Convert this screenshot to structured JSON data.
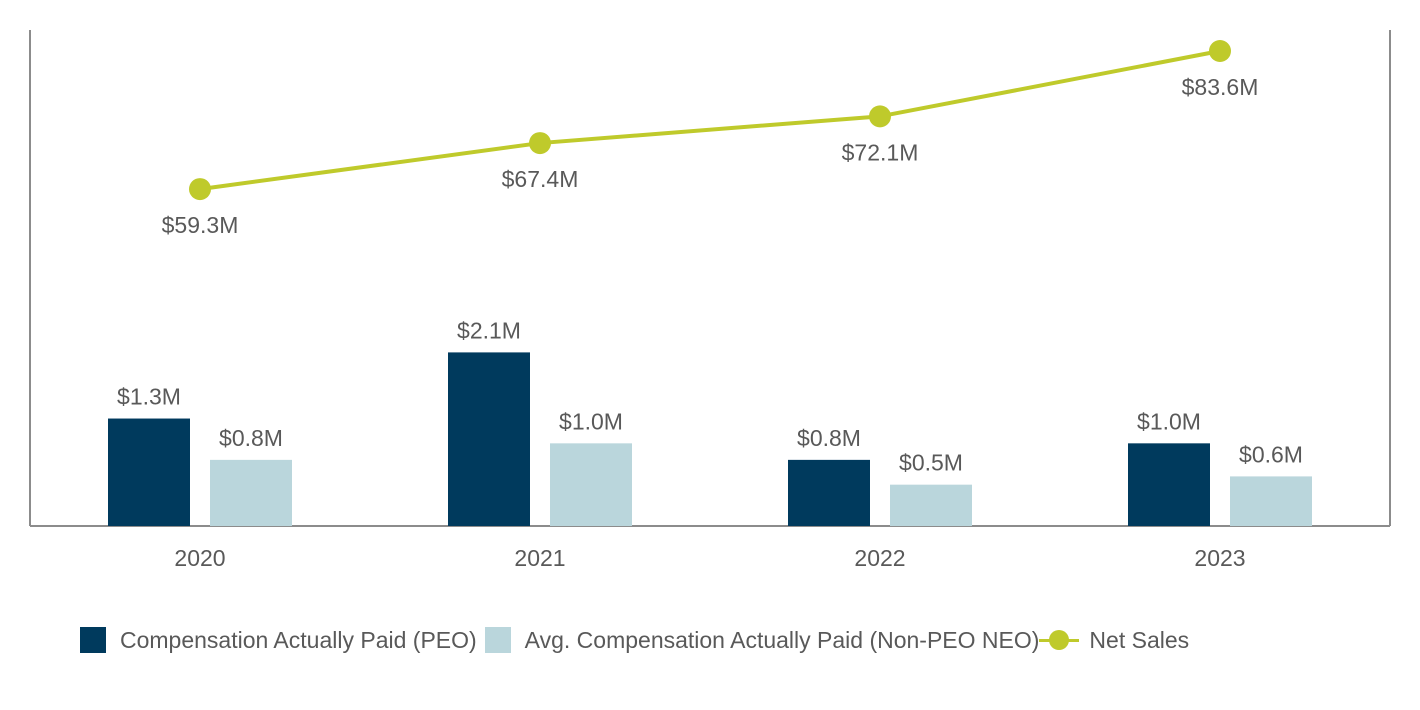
{
  "chart_data": {
    "type": "bar",
    "categories": [
      "2020",
      "2021",
      "2022",
      "2023"
    ],
    "series": [
      {
        "name": "Compensation Actually Paid (PEO)",
        "type": "bar",
        "axis": "left",
        "color": "#003a5d",
        "values": [
          1.3,
          2.1,
          0.8,
          1.0
        ],
        "labels": [
          "$1.3M",
          "$2.1M",
          "$0.8M",
          "$1.0M"
        ]
      },
      {
        "name": "Avg. Compensation Actually Paid (Non-PEO NEO)",
        "type": "bar",
        "axis": "left",
        "color": "#bad6dc",
        "values": [
          0.8,
          1.0,
          0.5,
          0.6
        ],
        "labels": [
          "$0.8M",
          "$1.0M",
          "$0.5M",
          "$0.6M"
        ]
      },
      {
        "name": "Net Sales",
        "type": "line",
        "axis": "right",
        "color": "#bfca2b",
        "values": [
          59.3,
          67.4,
          72.1,
          83.6
        ],
        "labels": [
          "$59.3M",
          "$67.4M",
          "$72.1M",
          "$83.6M"
        ]
      }
    ],
    "title": "",
    "xlabel": "",
    "ylabel": "",
    "axes": {
      "left": {
        "ylim": [
          0,
          6.0
        ],
        "visible_ticks": false
      },
      "right": {
        "ylim": [
          0,
          87.3
        ],
        "visible_ticks": false
      }
    },
    "grid": false,
    "legend_position": "bottom"
  }
}
